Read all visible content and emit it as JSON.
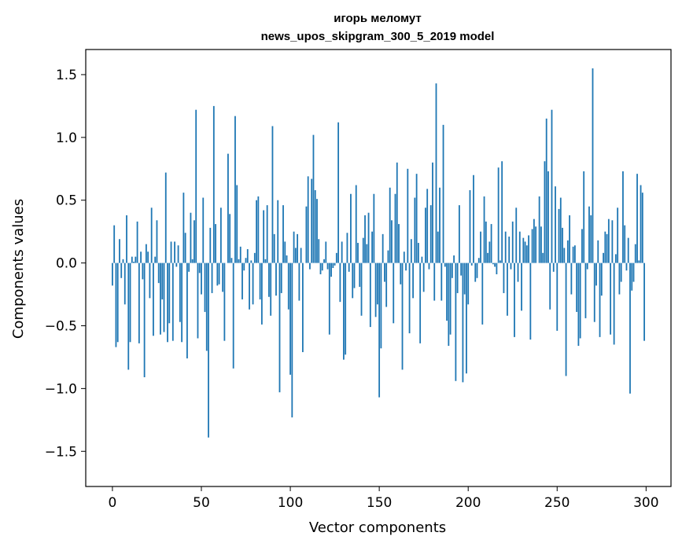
{
  "chart_data": {
    "type": "bar",
    "title": [
      "игорь меломут",
      "news_upos_skipgram_300_5_2019 model"
    ],
    "xlabel": "Vector components",
    "ylabel": "Components values",
    "xlim": [
      -15,
      314
    ],
    "ylim": [
      -1.78,
      1.7
    ],
    "xticks": [
      0,
      50,
      100,
      150,
      200,
      250,
      300
    ],
    "xtick_labels": [
      "0",
      "50",
      "100",
      "150",
      "200",
      "250",
      "300"
    ],
    "yticks": [
      -1.5,
      -1.0,
      -0.5,
      0.0,
      0.5,
      1.0,
      1.5
    ],
    "ytick_labels": [
      "−1.5",
      "−1.0",
      "−0.5",
      "0.0",
      "0.5",
      "1.0",
      "1.5"
    ],
    "bar_color": "#1f77b4",
    "bar_width": 0.8,
    "values": [
      -0.18,
      0.3,
      -0.67,
      -0.63,
      0.19,
      -0.12,
      0.03,
      -0.33,
      0.38,
      -0.85,
      -0.63,
      0.05,
      0.01,
      0.05,
      0.33,
      -0.64,
      0.09,
      -0.13,
      -0.91,
      0.15,
      0.09,
      -0.28,
      0.44,
      -0.58,
      0.05,
      0.34,
      -0.16,
      -0.57,
      -0.29,
      -0.55,
      0.72,
      -0.63,
      -0.48,
      0.17,
      -0.62,
      0.17,
      -0.03,
      0.14,
      -0.47,
      -0.63,
      0.56,
      0.24,
      -0.76,
      -0.07,
      0.4,
      0.03,
      0.34,
      1.22,
      -0.6,
      -0.08,
      -0.25,
      0.52,
      -0.39,
      -0.7,
      -1.39,
      0.28,
      -0.24,
      1.25,
      0.31,
      -0.18,
      -0.17,
      0.44,
      -0.23,
      -0.62,
      0.0,
      0.87,
      0.39,
      0.04,
      -0.84,
      1.17,
      0.62,
      0.03,
      0.13,
      -0.29,
      -0.06,
      0.04,
      0.11,
      -0.37,
      0.02,
      -0.33,
      0.08,
      0.5,
      0.53,
      -0.29,
      -0.49,
      0.42,
      0.03,
      0.46,
      -0.27,
      -0.42,
      1.09,
      0.23,
      -0.26,
      0.5,
      -1.03,
      -0.24,
      0.46,
      0.17,
      0.06,
      -0.37,
      -0.89,
      -1.23,
      0.25,
      0.12,
      0.23,
      -0.3,
      0.12,
      -0.71,
      0.0,
      0.45,
      0.69,
      -0.05,
      0.67,
      1.02,
      0.58,
      0.51,
      0.19,
      -0.09,
      -0.06,
      0.03,
      0.17,
      -0.05,
      -0.57,
      -0.11,
      -0.04,
      -0.02,
      0.08,
      1.12,
      -0.31,
      0.17,
      -0.77,
      -0.73,
      0.24,
      -0.07,
      0.55,
      -0.28,
      -0.2,
      0.62,
      0.16,
      -0.19,
      -0.42,
      0.2,
      0.38,
      0.15,
      0.4,
      -0.51,
      0.25,
      0.55,
      -0.43,
      -0.33,
      -1.07,
      -0.68,
      0.23,
      -0.15,
      -0.35,
      0.1,
      0.6,
      0.34,
      -0.48,
      0.55,
      0.8,
      0.31,
      -0.17,
      -0.85,
      0.09,
      -0.06,
      0.75,
      -0.56,
      0.19,
      -0.28,
      0.52,
      0.71,
      0.16,
      -0.64,
      0.05,
      -0.23,
      0.44,
      0.59,
      -0.05,
      0.46,
      0.8,
      -0.3,
      1.43,
      0.25,
      0.6,
      -0.3,
      1.1,
      -0.03,
      -0.46,
      -0.66,
      -0.57,
      -0.12,
      0.06,
      -0.94,
      -0.24,
      0.46,
      -0.1,
      -0.95,
      -0.25,
      -0.88,
      -0.33,
      0.58,
      -0.02,
      0.7,
      -0.15,
      -0.12,
      0.04,
      0.25,
      -0.49,
      0.53,
      0.33,
      0.08,
      0.17,
      0.31,
      -0.01,
      -0.03,
      -0.09,
      0.76,
      0.02,
      0.81,
      -0.24,
      0.25,
      -0.42,
      0.21,
      -0.05,
      0.33,
      -0.59,
      0.44,
      -0.15,
      0.25,
      -0.38,
      0.2,
      0.17,
      0.14,
      0.22,
      -0.61,
      0.27,
      0.35,
      0.29,
      0.0,
      0.53,
      0.29,
      0.08,
      0.81,
      1.15,
      0.73,
      -0.37,
      1.22,
      -0.07,
      0.61,
      -0.54,
      0.43,
      0.52,
      0.28,
      0.12,
      -0.9,
      0.18,
      0.38,
      -0.25,
      0.13,
      0.14,
      -0.39,
      -0.66,
      -0.6,
      0.27,
      0.73,
      -0.44,
      -0.05,
      0.45,
      0.38,
      1.55,
      -0.47,
      -0.18,
      0.18,
      -0.59,
      -0.26,
      0.08,
      0.25,
      0.23,
      0.35,
      -0.57,
      0.34,
      -0.65,
      0.07,
      0.44,
      -0.25,
      -0.15,
      0.73,
      0.3,
      -0.06,
      0.2,
      -1.04,
      -0.22,
      -0.15,
      0.15,
      0.71,
      0.02,
      0.62,
      0.56,
      -0.62
    ]
  }
}
